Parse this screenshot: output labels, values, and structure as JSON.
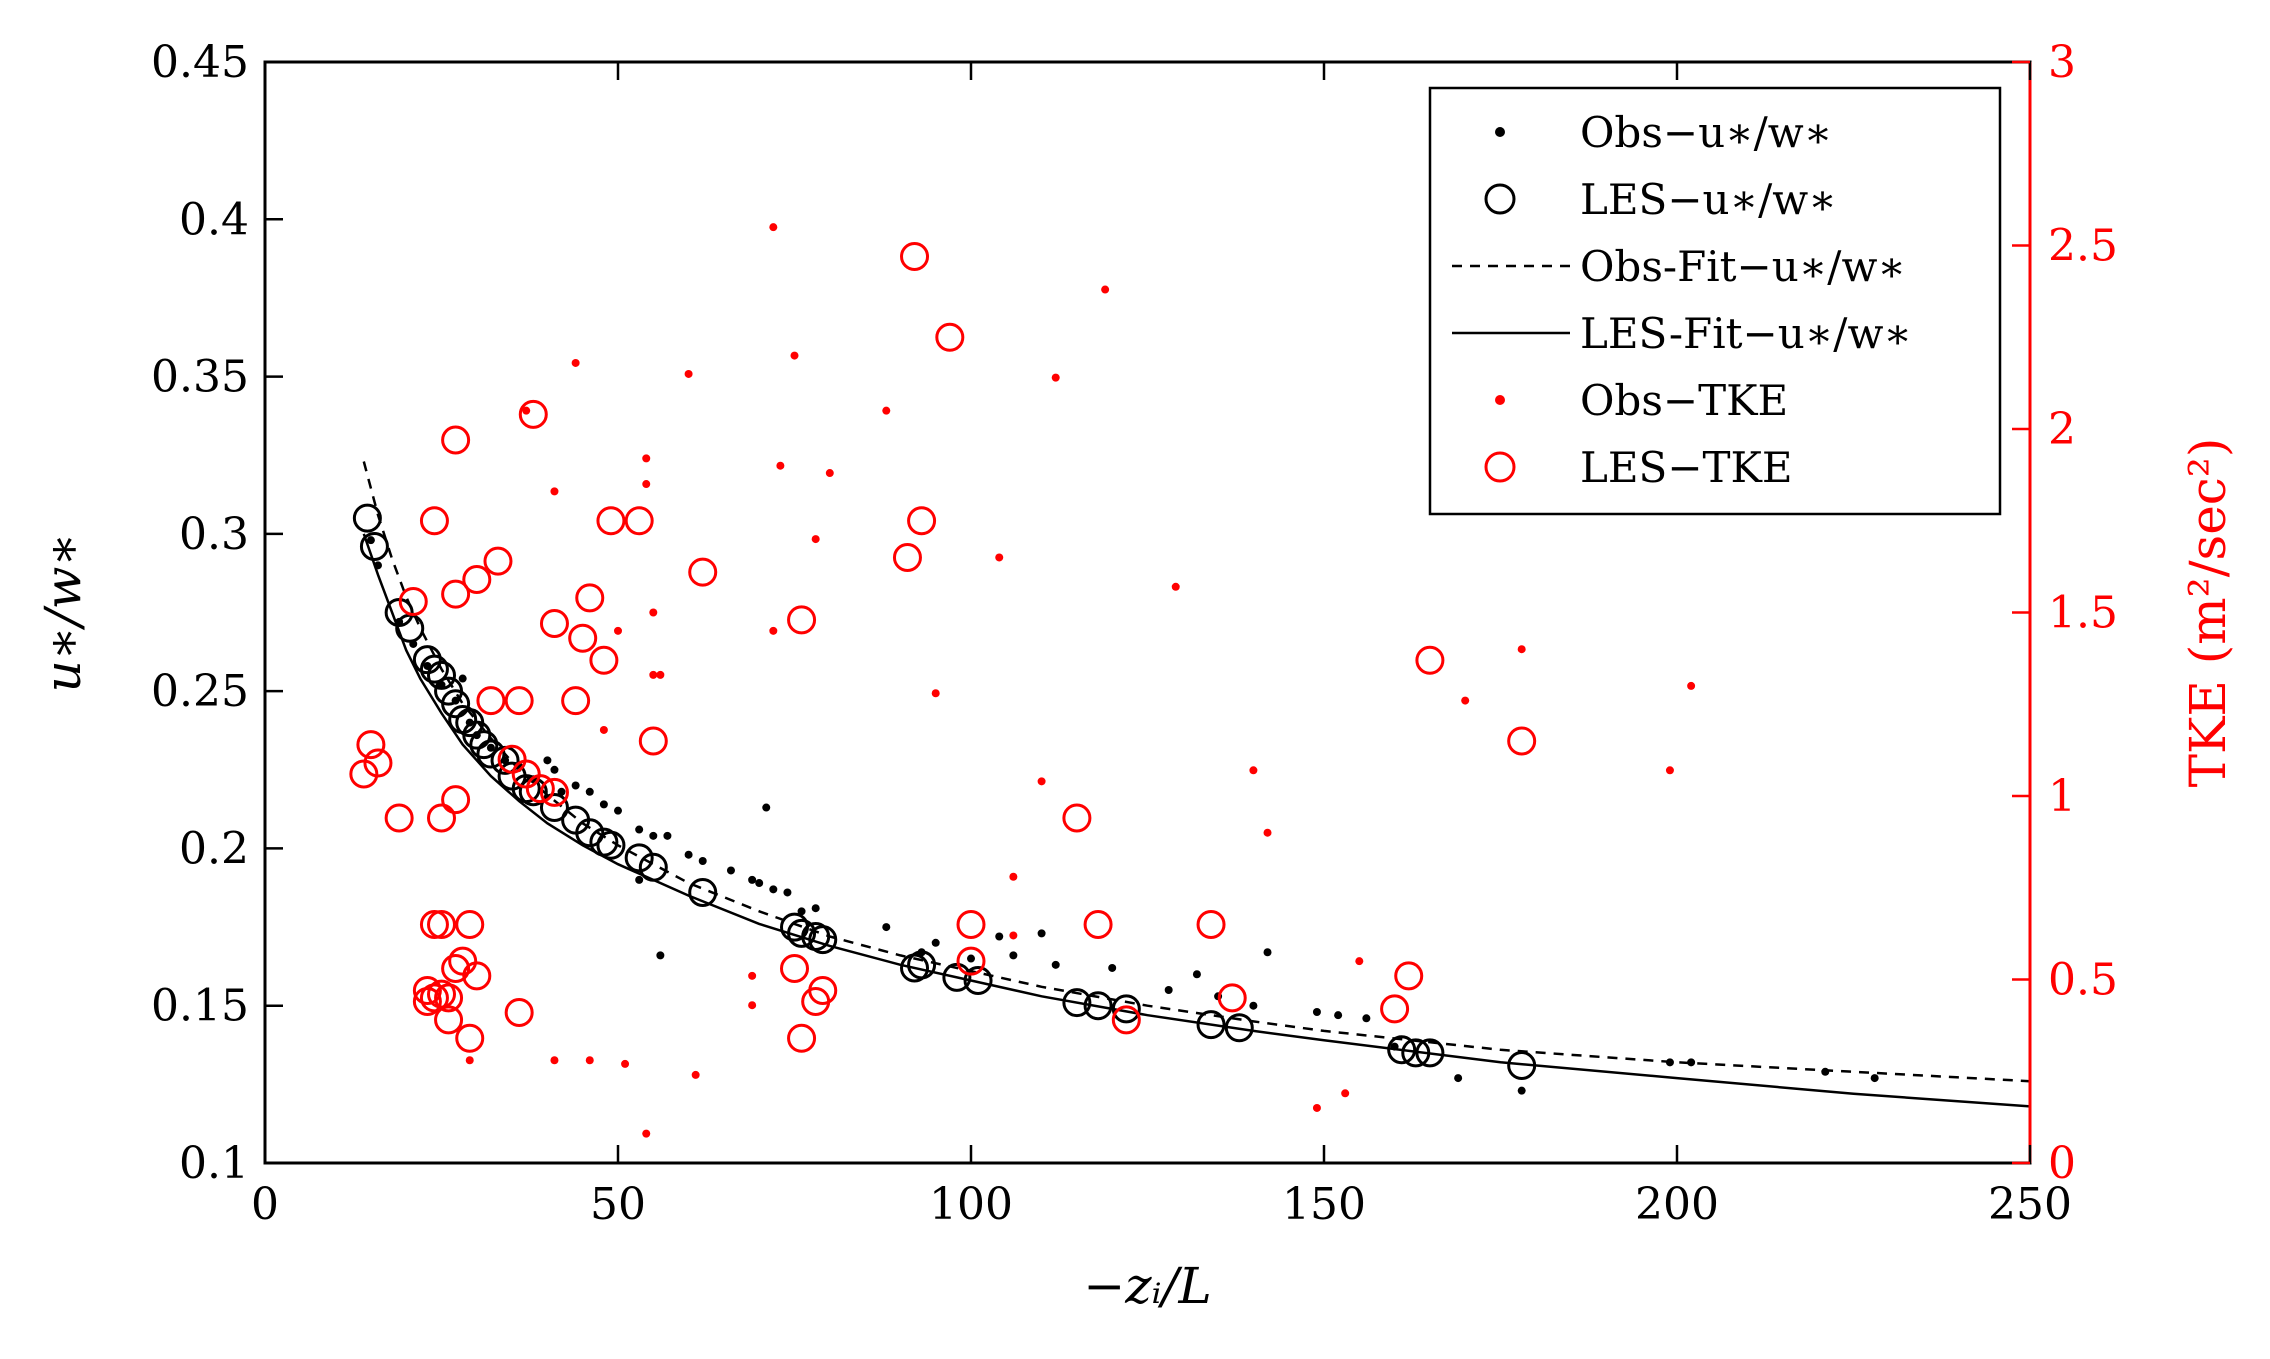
{
  "chart_data": {
    "type": "scatter",
    "xlabel": "−zᵢ/L",
    "ylabel_left": "u∗/w∗",
    "ylabel_right": "TKE (m²/sec²)",
    "xlim": [
      0,
      250
    ],
    "ylim_left": [
      0.1,
      0.45
    ],
    "ylim_right": [
      0,
      3
    ],
    "xticks": [
      "0",
      "50",
      "100",
      "150",
      "200",
      "250"
    ],
    "xtick_values": [
      0,
      50,
      100,
      150,
      200,
      250
    ],
    "yticks_left": [
      "0.1",
      "0.15",
      "0.2",
      "0.25",
      "0.3",
      "0.35",
      "0.4",
      "0.45"
    ],
    "ytick_left_values": [
      0.1,
      0.15,
      0.2,
      0.25,
      0.3,
      0.35,
      0.4,
      0.45
    ],
    "yticks_right": [
      "0",
      "0.5",
      "1",
      "1.5",
      "2",
      "2.5",
      "3"
    ],
    "ytick_right_values": [
      0,
      0.5,
      1,
      1.5,
      2,
      2.5,
      3
    ],
    "colors": {
      "black": "#000000",
      "red": "#ff0000"
    },
    "legend": {
      "position": "top-right",
      "entries": [
        {
          "label": "Obs−u∗/w∗",
          "marker": "dot",
          "color": "#000000"
        },
        {
          "label": "LES−u∗/w∗",
          "marker": "circle",
          "color": "#000000"
        },
        {
          "label": "Obs-Fit−u∗/w∗",
          "marker": "dashed-line",
          "color": "#000000"
        },
        {
          "label": "LES-Fit−u∗/w∗",
          "marker": "solid-line",
          "color": "#000000"
        },
        {
          "label": "Obs−TKE",
          "marker": "dot",
          "color": "#ff0000"
        },
        {
          "label": "LES−TKE",
          "marker": "circle",
          "color": "#ff0000"
        }
      ]
    },
    "series": [
      {
        "name": "Obs-Fit−u∗/w∗",
        "axis": "left",
        "style": "dashed",
        "color": "#000000",
        "x": [
          14,
          16,
          18,
          20,
          22,
          25,
          28,
          32,
          36,
          40,
          45,
          50,
          55,
          60,
          70,
          80,
          90,
          100,
          110,
          125,
          140,
          150,
          175,
          200,
          225,
          250
        ],
        "y": [
          0.323,
          0.306,
          0.292,
          0.28,
          0.27,
          0.257,
          0.246,
          0.235,
          0.225,
          0.217,
          0.208,
          0.201,
          0.195,
          0.189,
          0.18,
          0.172,
          0.166,
          0.161,
          0.156,
          0.15,
          0.145,
          0.142,
          0.136,
          0.132,
          0.129,
          0.126
        ]
      },
      {
        "name": "LES-Fit−u∗/w∗",
        "axis": "left",
        "style": "solid",
        "color": "#000000",
        "x": [
          14,
          16,
          18,
          20,
          22,
          25,
          28,
          32,
          36,
          40,
          45,
          50,
          55,
          60,
          70,
          80,
          90,
          100,
          110,
          125,
          140,
          150,
          175,
          200,
          225,
          250
        ],
        "y": [
          0.3,
          0.287,
          0.275,
          0.263,
          0.254,
          0.243,
          0.233,
          0.223,
          0.215,
          0.208,
          0.201,
          0.195,
          0.19,
          0.185,
          0.176,
          0.169,
          0.163,
          0.158,
          0.153,
          0.147,
          0.142,
          0.139,
          0.132,
          0.127,
          0.122,
          0.118
        ]
      },
      {
        "name": "Obs−u∗/w∗",
        "axis": "left",
        "marker": "dot",
        "color": "#000000",
        "points": [
          [
            15,
            0.298
          ],
          [
            16,
            0.29
          ],
          [
            19,
            0.272
          ],
          [
            21,
            0.265
          ],
          [
            23,
            0.258
          ],
          [
            25,
            0.252
          ],
          [
            27,
            0.247
          ],
          [
            28,
            0.254
          ],
          [
            29,
            0.24
          ],
          [
            30,
            0.236
          ],
          [
            32,
            0.232
          ],
          [
            34,
            0.228
          ],
          [
            36,
            0.226
          ],
          [
            38,
            0.222
          ],
          [
            40,
            0.228
          ],
          [
            41,
            0.225
          ],
          [
            42,
            0.218
          ],
          [
            44,
            0.22
          ],
          [
            46,
            0.218
          ],
          [
            48,
            0.214
          ],
          [
            50,
            0.212
          ],
          [
            53,
            0.206
          ],
          [
            55,
            0.204
          ],
          [
            57,
            0.204
          ],
          [
            53,
            0.19
          ],
          [
            56,
            0.166
          ],
          [
            60,
            0.198
          ],
          [
            62,
            0.196
          ],
          [
            66,
            0.193
          ],
          [
            69,
            0.19
          ],
          [
            70,
            0.189
          ],
          [
            72,
            0.187
          ],
          [
            71,
            0.213
          ],
          [
            74,
            0.186
          ],
          [
            76,
            0.18
          ],
          [
            78,
            0.181
          ],
          [
            88,
            0.175
          ],
          [
            93,
            0.167
          ],
          [
            95,
            0.17
          ],
          [
            100,
            0.165
          ],
          [
            104,
            0.172
          ],
          [
            106,
            0.166
          ],
          [
            110,
            0.173
          ],
          [
            112,
            0.163
          ],
          [
            120,
            0.162
          ],
          [
            128,
            0.155
          ],
          [
            132,
            0.16
          ],
          [
            135,
            0.153
          ],
          [
            142,
            0.167
          ],
          [
            140,
            0.15
          ],
          [
            149,
            0.148
          ],
          [
            152,
            0.147
          ],
          [
            156,
            0.146
          ],
          [
            160,
            0.137
          ],
          [
            169,
            0.127
          ],
          [
            178,
            0.123
          ],
          [
            199,
            0.132
          ],
          [
            202,
            0.132
          ],
          [
            221,
            0.129
          ],
          [
            228,
            0.127
          ]
        ]
      },
      {
        "name": "LES−u∗/w∗",
        "axis": "left",
        "marker": "circle",
        "color": "#000000",
        "points": [
          [
            14.5,
            0.305
          ],
          [
            15.5,
            0.296
          ],
          [
            19,
            0.275
          ],
          [
            20.5,
            0.27
          ],
          [
            23,
            0.26
          ],
          [
            24,
            0.257
          ],
          [
            25,
            0.255
          ],
          [
            26,
            0.25
          ],
          [
            27,
            0.246
          ],
          [
            28,
            0.241
          ],
          [
            29,
            0.24
          ],
          [
            30,
            0.236
          ],
          [
            31,
            0.233
          ],
          [
            32,
            0.23
          ],
          [
            34,
            0.228
          ],
          [
            35,
            0.223
          ],
          [
            37,
            0.219
          ],
          [
            38,
            0.218
          ],
          [
            41,
            0.213
          ],
          [
            44,
            0.209
          ],
          [
            46,
            0.205
          ],
          [
            48,
            0.202
          ],
          [
            49,
            0.201
          ],
          [
            53,
            0.197
          ],
          [
            55,
            0.194
          ],
          [
            62,
            0.186
          ],
          [
            75,
            0.175
          ],
          [
            76,
            0.173
          ],
          [
            78,
            0.172
          ],
          [
            79,
            0.171
          ],
          [
            92,
            0.162
          ],
          [
            93,
            0.163
          ],
          [
            98,
            0.159
          ],
          [
            101,
            0.158
          ],
          [
            115,
            0.151
          ],
          [
            118,
            0.15
          ],
          [
            122,
            0.149
          ],
          [
            134,
            0.144
          ],
          [
            138,
            0.143
          ],
          [
            161,
            0.136
          ],
          [
            163,
            0.135
          ],
          [
            165,
            0.135
          ],
          [
            178,
            0.131
          ]
        ]
      },
      {
        "name": "Obs−TKE",
        "axis": "right",
        "marker": "dot",
        "color": "#ff0000",
        "points": [
          [
            37,
            2.05
          ],
          [
            44,
            2.18
          ],
          [
            41,
            1.83
          ],
          [
            54,
            1.92
          ],
          [
            54,
            1.85
          ],
          [
            50,
            1.45
          ],
          [
            55,
            1.5
          ],
          [
            48,
            1.18
          ],
          [
            56,
            1.33
          ],
          [
            55,
            1.33
          ],
          [
            60,
            2.15
          ],
          [
            72,
            2.55
          ],
          [
            73,
            1.9
          ],
          [
            75,
            2.2
          ],
          [
            72,
            1.45
          ],
          [
            78,
            1.7
          ],
          [
            80,
            1.88
          ],
          [
            88,
            2.05
          ],
          [
            95,
            1.28
          ],
          [
            104,
            1.65
          ],
          [
            106,
            0.78
          ],
          [
            106,
            0.62
          ],
          [
            110,
            1.04
          ],
          [
            112,
            2.14
          ],
          [
            119,
            2.38
          ],
          [
            129,
            1.57
          ],
          [
            140,
            1.07
          ],
          [
            142,
            0.9
          ],
          [
            155,
            0.55
          ],
          [
            149,
            0.15
          ],
          [
            153,
            0.19
          ],
          [
            170,
            1.26
          ],
          [
            178,
            1.4
          ],
          [
            199,
            1.07
          ],
          [
            202,
            1.3
          ],
          [
            54,
            0.08
          ],
          [
            61,
            0.24
          ],
          [
            29,
            0.28
          ],
          [
            41,
            0.28
          ],
          [
            46,
            0.28
          ],
          [
            51,
            0.27
          ],
          [
            69,
            0.43
          ],
          [
            69,
            0.51
          ]
        ]
      },
      {
        "name": "LES−TKE",
        "axis": "right",
        "marker": "circle",
        "color": "#ff0000",
        "points": [
          [
            92,
            2.47
          ],
          [
            97,
            2.25
          ],
          [
            38,
            2.04
          ],
          [
            27,
            1.97
          ],
          [
            24,
            1.75
          ],
          [
            49,
            1.75
          ],
          [
            53,
            1.75
          ],
          [
            93,
            1.75
          ],
          [
            91,
            1.65
          ],
          [
            33,
            1.64
          ],
          [
            30,
            1.59
          ],
          [
            62,
            1.61
          ],
          [
            27,
            1.55
          ],
          [
            46,
            1.54
          ],
          [
            21,
            1.53
          ],
          [
            41,
            1.47
          ],
          [
            45,
            1.43
          ],
          [
            76,
            1.48
          ],
          [
            48,
            1.37
          ],
          [
            165,
            1.37
          ],
          [
            32,
            1.26
          ],
          [
            36,
            1.26
          ],
          [
            44,
            1.26
          ],
          [
            15,
            1.14
          ],
          [
            55,
            1.15
          ],
          [
            178,
            1.15
          ],
          [
            16,
            1.09
          ],
          [
            14,
            1.06
          ],
          [
            37,
            1.06
          ],
          [
            35,
            1.1
          ],
          [
            39,
            1.02
          ],
          [
            41,
            1.01
          ],
          [
            27,
            0.99
          ],
          [
            19,
            0.94
          ],
          [
            25,
            0.94
          ],
          [
            115,
            0.94
          ],
          [
            24,
            0.65
          ],
          [
            25,
            0.65
          ],
          [
            29,
            0.65
          ],
          [
            100,
            0.65
          ],
          [
            118,
            0.65
          ],
          [
            134,
            0.65
          ],
          [
            27,
            0.53
          ],
          [
            28,
            0.55
          ],
          [
            30,
            0.51
          ],
          [
            75,
            0.53
          ],
          [
            100,
            0.55
          ],
          [
            162,
            0.51
          ],
          [
            23,
            0.47
          ],
          [
            24,
            0.45
          ],
          [
            25,
            0.46
          ],
          [
            26,
            0.45
          ],
          [
            79,
            0.47
          ],
          [
            78,
            0.44
          ],
          [
            137,
            0.45
          ],
          [
            160,
            0.42
          ],
          [
            36,
            0.41
          ],
          [
            26,
            0.39
          ],
          [
            122,
            0.39
          ],
          [
            23,
            0.44
          ],
          [
            29,
            0.34
          ],
          [
            76,
            0.34
          ]
        ]
      }
    ]
  }
}
